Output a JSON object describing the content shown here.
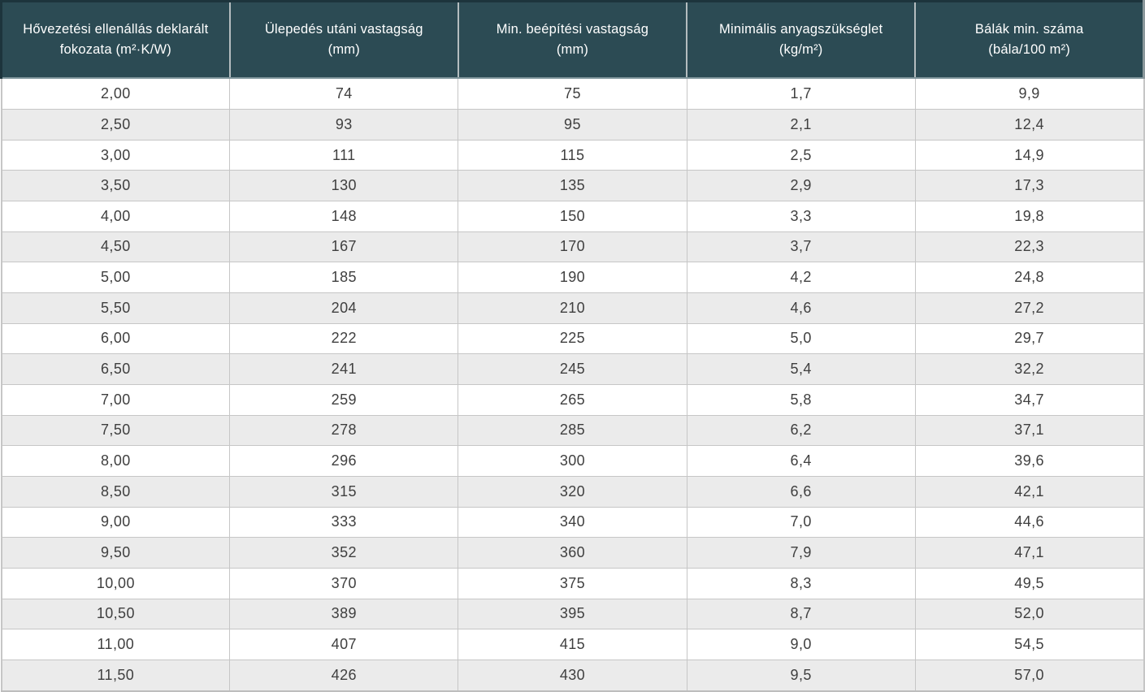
{
  "colors": {
    "header_bg": "#2c4b54",
    "header_border_dark": "#1d343c",
    "header_text": "#ffffff",
    "row_bg": "#ffffff",
    "row_alt_bg": "#ebebeb",
    "cell_text": "#3f3f3f",
    "grid_border": "#c6c6c6"
  },
  "chart_data": {
    "type": "table",
    "columns": [
      {
        "line1": "Hővezetési ellenállás deklarált",
        "line2": "fokozata (m²·K/W)"
      },
      {
        "line1": "Ülepedés utáni vastagság",
        "line2": "(mm)"
      },
      {
        "line1": "Min. beépítési vastagság",
        "line2": "(mm)"
      },
      {
        "line1": "Minimális anyagszükséglet",
        "line2": "(kg/m²)"
      },
      {
        "line1": "Bálák min. száma",
        "line2": "(bála/100 m²)"
      }
    ],
    "rows": [
      [
        "2,00",
        "74",
        "75",
        "1,7",
        "9,9"
      ],
      [
        "2,50",
        "93",
        "95",
        "2,1",
        "12,4"
      ],
      [
        "3,00",
        "111",
        "115",
        "2,5",
        "14,9"
      ],
      [
        "3,50",
        "130",
        "135",
        "2,9",
        "17,3"
      ],
      [
        "4,00",
        "148",
        "150",
        "3,3",
        "19,8"
      ],
      [
        "4,50",
        "167",
        "170",
        "3,7",
        "22,3"
      ],
      [
        "5,00",
        "185",
        "190",
        "4,2",
        "24,8"
      ],
      [
        "5,50",
        "204",
        "210",
        "4,6",
        "27,2"
      ],
      [
        "6,00",
        "222",
        "225",
        "5,0",
        "29,7"
      ],
      [
        "6,50",
        "241",
        "245",
        "5,4",
        "32,2"
      ],
      [
        "7,00",
        "259",
        "265",
        "5,8",
        "34,7"
      ],
      [
        "7,50",
        "278",
        "285",
        "6,2",
        "37,1"
      ],
      [
        "8,00",
        "296",
        "300",
        "6,4",
        "39,6"
      ],
      [
        "8,50",
        "315",
        "320",
        "6,6",
        "42,1"
      ],
      [
        "9,00",
        "333",
        "340",
        "7,0",
        "44,6"
      ],
      [
        "9,50",
        "352",
        "360",
        "7,9",
        "47,1"
      ],
      [
        "10,00",
        "370",
        "375",
        "8,3",
        "49,5"
      ],
      [
        "10,50",
        "389",
        "395",
        "8,7",
        "52,0"
      ],
      [
        "11,00",
        "407",
        "415",
        "9,0",
        "54,5"
      ],
      [
        "11,50",
        "426",
        "430",
        "9,5",
        "57,0"
      ]
    ]
  }
}
